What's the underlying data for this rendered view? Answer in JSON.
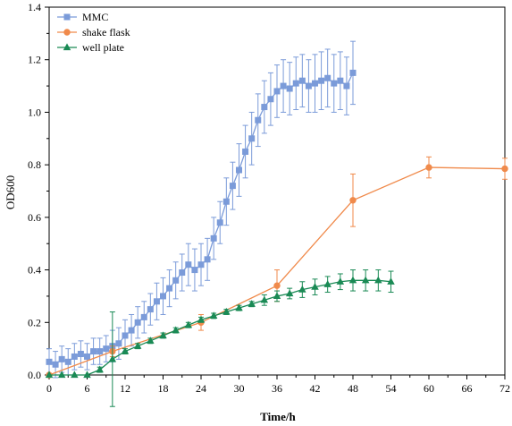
{
  "chart_data": {
    "type": "line",
    "title": "",
    "xlabel": "Time/h",
    "ylabel": "OD600",
    "xlim": [
      0,
      72
    ],
    "ylim": [
      0,
      1.4
    ],
    "xticks": [
      0,
      6,
      12,
      18,
      24,
      30,
      36,
      42,
      48,
      54,
      60,
      66,
      72
    ],
    "yticks": [
      0.0,
      0.2,
      0.4,
      0.6,
      0.8,
      1.0,
      1.2,
      1.4
    ],
    "grid": false,
    "legend_position": "top-left",
    "series": [
      {
        "name": "MMC",
        "color": "#7b9bd9",
        "marker": "square",
        "x": [
          0,
          1,
          2,
          3,
          4,
          5,
          6,
          7,
          8,
          9,
          10,
          11,
          12,
          13,
          14,
          15,
          16,
          17,
          18,
          19,
          20,
          21,
          22,
          23,
          24,
          25,
          26,
          27,
          28,
          29,
          30,
          31,
          32,
          33,
          34,
          35,
          36,
          37,
          38,
          39,
          40,
          41,
          42,
          43,
          44,
          45,
          46,
          47,
          48
        ],
        "y": [
          0.05,
          0.04,
          0.06,
          0.05,
          0.07,
          0.08,
          0.07,
          0.09,
          0.09,
          0.1,
          0.11,
          0.12,
          0.15,
          0.17,
          0.2,
          0.22,
          0.25,
          0.28,
          0.3,
          0.33,
          0.36,
          0.39,
          0.42,
          0.4,
          0.42,
          0.44,
          0.52,
          0.58,
          0.66,
          0.72,
          0.78,
          0.85,
          0.9,
          0.97,
          1.02,
          1.05,
          1.08,
          1.1,
          1.09,
          1.11,
          1.12,
          1.1,
          1.11,
          1.12,
          1.13,
          1.11,
          1.12,
          1.1,
          1.15
        ],
        "error": [
          0.05,
          0.05,
          0.05,
          0.05,
          0.05,
          0.05,
          0.05,
          0.05,
          0.05,
          0.05,
          0.06,
          0.06,
          0.06,
          0.06,
          0.06,
          0.06,
          0.06,
          0.07,
          0.07,
          0.07,
          0.07,
          0.07,
          0.08,
          0.08,
          0.08,
          0.08,
          0.08,
          0.08,
          0.09,
          0.09,
          0.1,
          0.1,
          0.1,
          0.1,
          0.1,
          0.1,
          0.1,
          0.1,
          0.1,
          0.1,
          0.1,
          0.1,
          0.11,
          0.11,
          0.11,
          0.11,
          0.11,
          0.11,
          0.12
        ]
      },
      {
        "name": "shake flask",
        "color": "#f08a4b",
        "marker": "circle",
        "x": [
          0,
          10,
          24,
          36,
          48,
          60,
          72
        ],
        "y": [
          0.0,
          0.09,
          0.2,
          0.34,
          0.665,
          0.79,
          0.785
        ],
        "error": [
          0.0,
          0.02,
          0.03,
          0.06,
          0.1,
          0.04,
          0.04
        ]
      },
      {
        "name": "well plate",
        "color": "#1a8a55",
        "marker": "triangle",
        "x": [
          0,
          2,
          4,
          6,
          8,
          10,
          12,
          14,
          16,
          18,
          20,
          22,
          24,
          26,
          28,
          30,
          32,
          34,
          36,
          38,
          40,
          42,
          44,
          46,
          48,
          50,
          52,
          54
        ],
        "y": [
          0.0,
          0.0,
          0.0,
          0.0,
          0.02,
          0.06,
          0.09,
          0.11,
          0.13,
          0.15,
          0.17,
          0.19,
          0.21,
          0.225,
          0.24,
          0.255,
          0.27,
          0.285,
          0.3,
          0.31,
          0.325,
          0.335,
          0.345,
          0.355,
          0.36,
          0.36,
          0.36,
          0.355
        ],
        "error": [
          0.0,
          0.0,
          0.0,
          0.0,
          0.01,
          0.18,
          0.01,
          0.01,
          0.01,
          0.01,
          0.01,
          0.01,
          0.01,
          0.01,
          0.01,
          0.01,
          0.01,
          0.02,
          0.02,
          0.02,
          0.03,
          0.03,
          0.03,
          0.03,
          0.04,
          0.04,
          0.04,
          0.04
        ]
      }
    ]
  }
}
